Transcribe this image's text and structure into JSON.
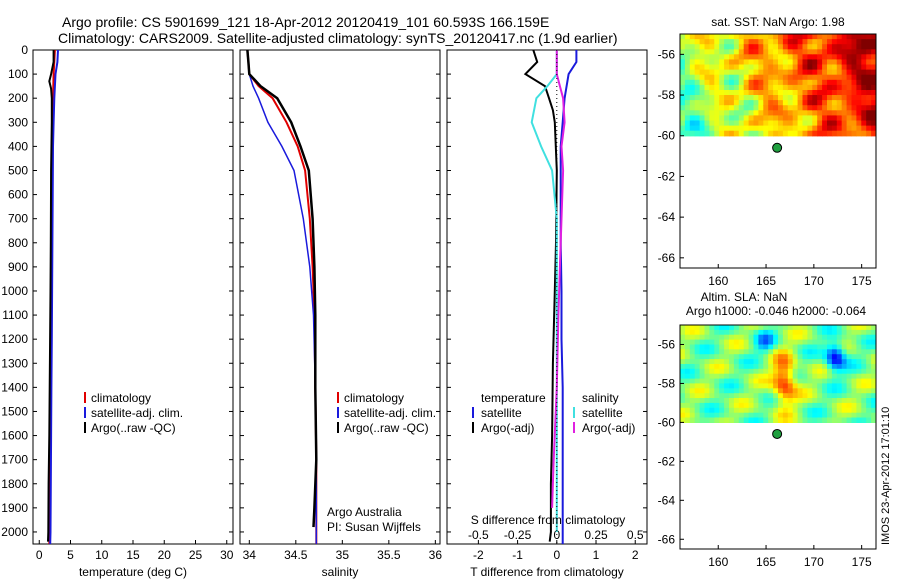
{
  "header": {
    "line1": "Argo profile: CS 5901699_121 18-Apr-2012 20120419_101 60.593S 166.159E",
    "line2": "Climatology: CARS2009. Satellite-adjusted climatology: synTS_20120417.nc (1.9d earlier)"
  },
  "colors": {
    "climatology": "#e00000",
    "satellite": "#1a1adc",
    "argo": "#000000",
    "salinity_satellite": "#40e0e0",
    "salinity_argo": "#e020e0"
  },
  "depth_ticks": [
    "0",
    "100",
    "200",
    "300",
    "400",
    "500",
    "600",
    "700",
    "800",
    "900",
    "1000",
    "1100",
    "1200",
    "1300",
    "1400",
    "1500",
    "1600",
    "1700",
    "1800",
    "1900",
    "2000"
  ],
  "temperature_panel": {
    "xlabel": "temperature (deg C)",
    "xticks": [
      "0",
      "5",
      "10",
      "15",
      "20",
      "25",
      "30"
    ],
    "legend": [
      "climatology",
      "satellite-adj. clim.",
      "Argo(..raw -QC)"
    ]
  },
  "salinity_panel": {
    "xlabel": "salinity",
    "xticks": [
      "34",
      "34.5",
      "35",
      "35.5",
      "36"
    ],
    "legend": [
      "climatology",
      "satellite-adj. clim.",
      "Argo(..raw -QC)"
    ],
    "credit1": "Argo Australia",
    "credit2": "PI: Susan Wijffels"
  },
  "difference_panel": {
    "xlabel_bottom": "T difference from climatology",
    "xlabel_top": "S difference from climatology",
    "xticks_T": [
      "-2",
      "-1",
      "0",
      "1",
      "2"
    ],
    "xticks_S": [
      "-0.5",
      "-0.25",
      "0",
      "0.25",
      "0.5"
    ],
    "legend_temperature": [
      "temperature",
      "satellite",
      "Argo(-adj)"
    ],
    "legend_salinity": [
      "salinity",
      "satellite",
      "Argo(-adj)"
    ]
  },
  "sst_map": {
    "title": "sat. SST: NaN Argo: 1.98",
    "xticks": [
      "160",
      "165",
      "170",
      "175"
    ],
    "yticks": [
      "-56",
      "-58",
      "-60",
      "-62",
      "-64",
      "-66"
    ]
  },
  "sla_map": {
    "title1": "Altim. SLA: NaN",
    "title2": "Argo h1000: -0.046 h2000: -0.064",
    "xticks": [
      "160",
      "165",
      "170",
      "175"
    ],
    "yticks": [
      "-56",
      "-58",
      "-60",
      "-62",
      "-64",
      "-66"
    ]
  },
  "footer": {
    "timestamp": "IMOS 23-Apr-2012 17:01:10"
  },
  "chart_data": [
    {
      "type": "line",
      "xlabel": "temperature (deg C)",
      "ylabel": "",
      "xlim": [
        -1,
        31
      ],
      "ylim": [
        2050,
        0
      ],
      "series": [
        {
          "name": "climatology",
          "x": [
            2.5,
            2.4,
            2.3,
            2.2,
            2.1,
            2.0,
            2.0,
            1.95,
            1.9,
            1.85,
            1.8,
            1.75,
            1.7,
            1.65,
            1.6
          ],
          "y": [
            0,
            50,
            100,
            200,
            300,
            400,
            600,
            800,
            1000,
            1200,
            1400,
            1600,
            1800,
            2000,
            2050
          ]
        },
        {
          "name": "satellite-adj. clim.",
          "x": [
            3.0,
            2.9,
            2.6,
            2.4,
            2.3,
            2.2,
            2.15,
            2.1,
            2.05,
            2.0,
            1.95,
            1.9,
            1.85,
            1.8,
            1.75
          ],
          "y": [
            0,
            50,
            100,
            200,
            300,
            400,
            600,
            800,
            1000,
            1200,
            1400,
            1600,
            1800,
            2000,
            2050
          ]
        },
        {
          "name": "Argo(..raw -QC)",
          "x": [
            2.3,
            2.3,
            1.9,
            1.6,
            1.9,
            2.0,
            2.0,
            1.9,
            1.85,
            1.8,
            1.7,
            1.6,
            1.5,
            1.45,
            1.4
          ],
          "y": [
            0,
            50,
            100,
            130,
            160,
            200,
            300,
            500,
            800,
            1000,
            1300,
            1600,
            1800,
            2000,
            2040
          ]
        }
      ]
    },
    {
      "type": "line",
      "xlabel": "salinity",
      "ylabel": "",
      "xlim": [
        33.9,
        36.05
      ],
      "ylim": [
        2050,
        0
      ],
      "series": [
        {
          "name": "climatology",
          "x": [
            33.98,
            33.99,
            34.0,
            34.1,
            34.25,
            34.4,
            34.52,
            34.6,
            34.65,
            34.68,
            34.7,
            34.71,
            34.72,
            34.72,
            34.72
          ],
          "y": [
            0,
            50,
            100,
            150,
            200,
            300,
            400,
            500,
            700,
            900,
            1100,
            1400,
            1700,
            2000,
            2050
          ]
        },
        {
          "name": "satellite-adj. clim.",
          "x": [
            33.98,
            33.99,
            34.0,
            34.04,
            34.1,
            34.2,
            34.35,
            34.48,
            34.58,
            34.65,
            34.69,
            34.71,
            34.72,
            34.72,
            34.72
          ],
          "y": [
            0,
            50,
            100,
            150,
            200,
            300,
            400,
            500,
            700,
            900,
            1100,
            1400,
            1700,
            2000,
            2050
          ]
        },
        {
          "name": "Argo(..raw -QC)",
          "x": [
            33.98,
            33.99,
            34.0,
            34.12,
            34.3,
            34.45,
            34.55,
            34.64,
            34.68,
            34.7,
            34.71,
            34.71,
            34.72,
            34.7,
            34.69
          ],
          "y": [
            0,
            50,
            100,
            150,
            200,
            300,
            400,
            500,
            700,
            900,
            1100,
            1400,
            1700,
            1900,
            1980
          ]
        }
      ]
    },
    {
      "type": "line",
      "xlabel": "T difference from climatology",
      "ylabel": "",
      "xlim": [
        -2.8,
        2.3
      ],
      "ylim": [
        2050,
        0
      ],
      "series": [
        {
          "name": "temperature satellite",
          "x": [
            0.5,
            0.5,
            0.3,
            0.2,
            0.15,
            0.1,
            0.1,
            0.1,
            0.12,
            0.12,
            0.15,
            0.15,
            0.15,
            0.15,
            0.15
          ],
          "y": [
            0,
            50,
            100,
            200,
            300,
            400,
            600,
            800,
            1000,
            1200,
            1400,
            1600,
            1800,
            2000,
            2050
          ]
        },
        {
          "name": "temperature Argo(-adj)",
          "x": [
            -0.6,
            -0.5,
            -0.8,
            -0.3,
            -0.2,
            -0.1,
            -0.05,
            0.0,
            -0.02,
            -0.05,
            -0.1,
            -0.12,
            -0.15,
            -0.15,
            -0.18
          ],
          "y": [
            0,
            50,
            100,
            150,
            200,
            250,
            300,
            500,
            800,
            1000,
            1300,
            1600,
            1800,
            2000,
            2040
          ]
        },
        {
          "name": "salinity satellite",
          "x": [
            0,
            0,
            0,
            -0.06,
            -0.13,
            -0.16,
            -0.1,
            -0.03,
            0,
            0,
            0,
            0,
            0,
            0
          ],
          "y": [
            0,
            50,
            100,
            150,
            200,
            300,
            400,
            500,
            700,
            900,
            1100,
            1400,
            1700,
            2000
          ]
        },
        {
          "name": "salinity Argo(-adj)",
          "x": [
            0,
            0,
            0,
            0.02,
            0.04,
            0.05,
            0.03,
            0.04,
            0.03,
            0.02,
            0.01,
            0,
            -0.02,
            -0.03
          ],
          "y": [
            0,
            50,
            100,
            150,
            200,
            300,
            400,
            500,
            700,
            900,
            1100,
            1400,
            1700,
            1900
          ]
        }
      ]
    },
    {
      "type": "heatmap",
      "title": "sat. SST: NaN Argo: 1.98",
      "xlim": [
        156,
        176.5
      ],
      "ylim": [
        -66.5,
        -55
      ],
      "xticks": [
        160,
        165,
        170,
        175
      ],
      "yticks": [
        -56,
        -58,
        -60,
        -62,
        -64,
        -66
      ],
      "data_extent": {
        "lon": [
          156,
          176.5
        ],
        "lat": [
          -60,
          -55
        ]
      },
      "argo_location": {
        "lon": 166.159,
        "lat": -60.593
      }
    },
    {
      "type": "heatmap",
      "title": "Altim. SLA: NaN",
      "xlim": [
        156,
        176.5
      ],
      "ylim": [
        -66.5,
        -55
      ],
      "xticks": [
        160,
        165,
        170,
        175
      ],
      "yticks": [
        -56,
        -58,
        -60,
        -62,
        -64,
        -66
      ],
      "data_extent": {
        "lon": [
          156,
          176.5
        ],
        "lat": [
          -60,
          -55
        ]
      },
      "argo_location": {
        "lon": 166.159,
        "lat": -60.593
      }
    }
  ]
}
